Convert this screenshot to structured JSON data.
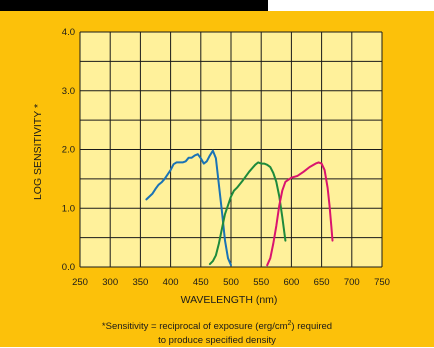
{
  "colors": {
    "background": "#fcc10a",
    "plot_background": "#fff19b",
    "grid": "#1a1a1a",
    "blue": "#1a73b5",
    "green": "#1e8a3c",
    "magenta": "#d9146e"
  },
  "chart_data": {
    "type": "line",
    "xlabel": "WAVELENGTH (nm)",
    "ylabel": "LOG SENSITIVITY *",
    "xlim": [
      250,
      750
    ],
    "ylim": [
      0.0,
      4.0
    ],
    "x_ticks": [
      250,
      300,
      350,
      400,
      450,
      500,
      550,
      600,
      650,
      700,
      750
    ],
    "y_ticks": [
      0.0,
      1.0,
      2.0,
      3.0,
      4.0
    ],
    "y_tick_labels": [
      "0.0",
      "1.0",
      "2.0",
      "3.0",
      "4.0"
    ],
    "grid": true,
    "series": [
      {
        "color": "#1a73b5",
        "x": [
          360,
          370,
          375,
          380,
          385,
          390,
          400,
          405,
          410,
          415,
          420,
          425,
          430,
          435,
          440,
          445,
          450,
          455,
          460,
          465,
          470,
          475,
          480,
          485,
          490,
          495,
          500
        ],
        "y": [
          1.15,
          1.25,
          1.33,
          1.4,
          1.44,
          1.5,
          1.65,
          1.75,
          1.78,
          1.78,
          1.78,
          1.8,
          1.86,
          1.86,
          1.9,
          1.92,
          1.85,
          1.76,
          1.8,
          1.9,
          1.98,
          1.85,
          1.4,
          0.95,
          0.45,
          0.15,
          0.03
        ]
      },
      {
        "color": "#1e8a3c",
        "x": [
          465,
          470,
          475,
          480,
          485,
          490,
          495,
          500,
          505,
          510,
          520,
          530,
          540,
          545,
          550,
          555,
          560,
          565,
          570,
          575,
          580,
          585,
          590
        ],
        "y": [
          0.05,
          0.1,
          0.2,
          0.4,
          0.65,
          0.9,
          1.05,
          1.2,
          1.3,
          1.35,
          1.48,
          1.62,
          1.74,
          1.78,
          1.76,
          1.76,
          1.74,
          1.7,
          1.6,
          1.45,
          1.2,
          0.85,
          0.45
        ]
      },
      {
        "color": "#d9146e",
        "x": [
          560,
          565,
          570,
          575,
          580,
          585,
          590,
          600,
          610,
          620,
          630,
          640,
          645,
          650,
          655,
          660,
          663,
          666,
          668
        ],
        "y": [
          0.03,
          0.15,
          0.4,
          0.7,
          1.05,
          1.3,
          1.45,
          1.52,
          1.55,
          1.62,
          1.7,
          1.76,
          1.78,
          1.76,
          1.65,
          1.35,
          1.05,
          0.7,
          0.45
        ]
      }
    ]
  },
  "footnote": {
    "line1_before": "*Sensitivity = reciprocal of exposure (erg/cm",
    "line1_sup": "2",
    "line1_after": ") required",
    "line2": "to produce specified density"
  }
}
